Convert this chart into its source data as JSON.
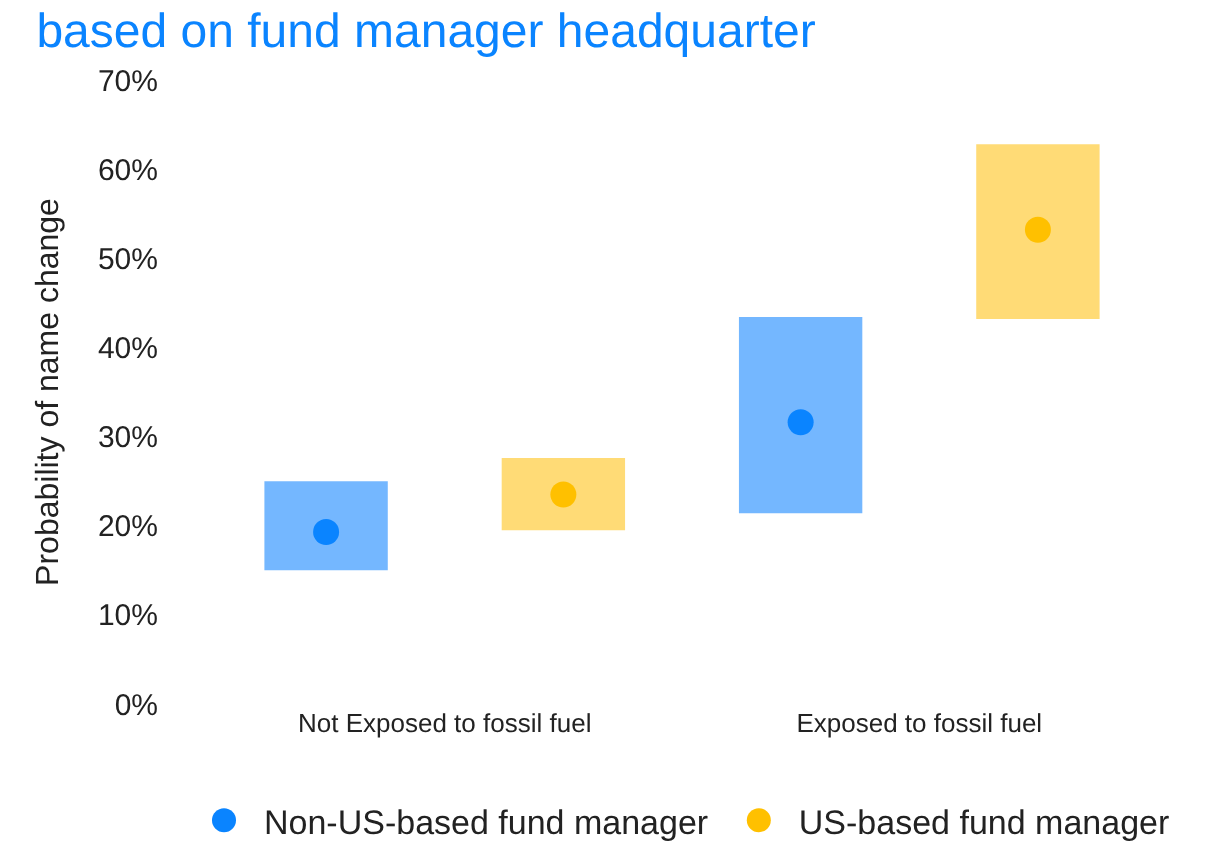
{
  "chart_data": {
    "type": "scatter",
    "title": "based on fund manager headquarter",
    "ylabel": "Probability of name change",
    "categories": [
      "Not Exposed to fossil fuel",
      "Exposed to fossil fuel"
    ],
    "series": [
      {
        "type": "bar",
        "color": "#74b7ff",
        "base": [
          15,
          21.4
        ],
        "values": [
          10,
          22
        ]
      },
      {
        "type": "bar",
        "color": "#ffdb76",
        "base": [
          19.5,
          43.2
        ],
        "values": [
          8.1,
          19.6
        ]
      },
      {
        "name": "Non-US-based fund manager",
        "color": "#0a84ff",
        "values": [
          19.3,
          31.6
        ]
      },
      {
        "name": "US-based fund manager",
        "color": "#ffc000",
        "values": [
          23.5,
          53.2
        ]
      }
    ],
    "ylim": [
      0,
      70
    ],
    "yticks": [
      {
        "value": 0,
        "label": "0%"
      },
      {
        "value": 10,
        "label": "10%"
      },
      {
        "value": 20,
        "label": "20%"
      },
      {
        "value": 30,
        "label": "30%"
      },
      {
        "value": 40,
        "label": "40%"
      },
      {
        "value": 50,
        "label": "50%"
      },
      {
        "value": 60,
        "label": "60%"
      },
      {
        "value": 70,
        "label": "70%"
      }
    ],
    "legend": "bottom",
    "marker": "circle"
  }
}
